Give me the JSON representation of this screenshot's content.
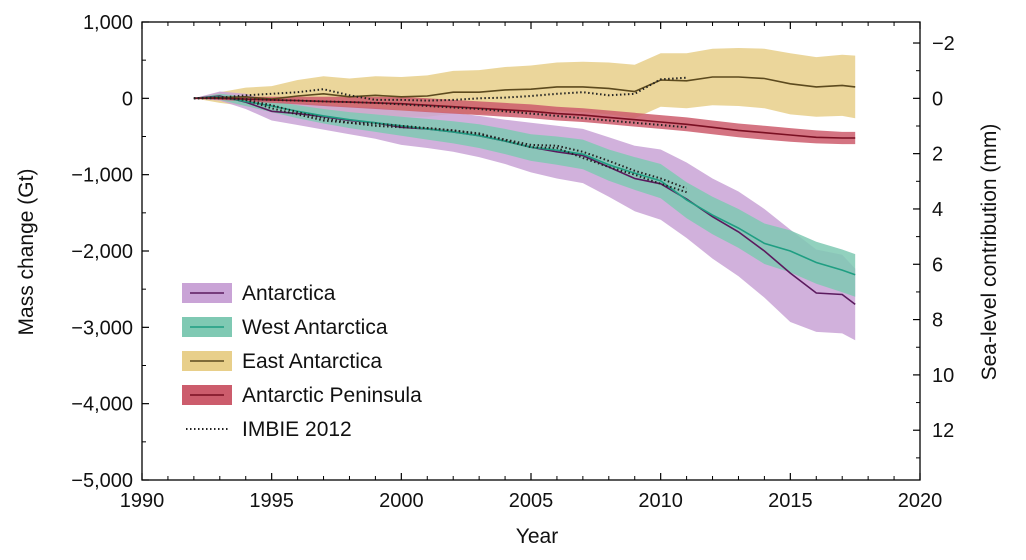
{
  "chart_data": {
    "type": "area",
    "xlabel": "Year",
    "ylabel": "Mass change (Gt)",
    "y2label": "Sea-level contribution (mm)",
    "xlim": [
      1990,
      2020
    ],
    "ylim": [
      -5000,
      1000
    ],
    "y2lim": [
      13.8,
      -2.76
    ],
    "xticks": [
      "1990",
      "1995",
      "2000",
      "2005",
      "2010",
      "2015",
      "2020"
    ],
    "yticks": [
      "1,000",
      "0",
      "−1,000",
      "−2,000",
      "−3,000",
      "−4,000",
      "−5,000"
    ],
    "y2ticks": [
      "−2",
      "0",
      "2",
      "4",
      "6",
      "8",
      "10",
      "12"
    ],
    "grid": false,
    "legend_position": "lower-left",
    "series": [
      {
        "name": "Antarctica",
        "color": "#5b1a5e",
        "band_color": "#c9a3d6",
        "x": [
          1992,
          1993,
          1994,
          1995,
          1996,
          1997,
          1998,
          1999,
          2000,
          2001,
          2002,
          2003,
          2004,
          2005,
          2006,
          2007,
          2008,
          2009,
          2010,
          2011,
          2012,
          2013,
          2014,
          2015,
          2016,
          2017,
          2017.5
        ],
        "y": [
          0,
          30,
          -50,
          -170,
          -200,
          -240,
          -290,
          -320,
          -380,
          -400,
          -440,
          -490,
          -560,
          -640,
          -700,
          -750,
          -900,
          -1050,
          -1120,
          -1320,
          -1550,
          -1750,
          -2000,
          -2290,
          -2550,
          -2570,
          -2700
        ],
        "low": [
          0,
          -30,
          -140,
          -290,
          -350,
          -410,
          -470,
          -530,
          -610,
          -650,
          -700,
          -770,
          -860,
          -970,
          -1050,
          -1110,
          -1290,
          -1480,
          -1590,
          -1830,
          -2100,
          -2330,
          -2610,
          -2930,
          -3060,
          -3080,
          -3170
        ],
        "high": [
          0,
          90,
          60,
          -40,
          -60,
          -80,
          -110,
          -120,
          -160,
          -170,
          -190,
          -230,
          -280,
          -320,
          -360,
          -400,
          -510,
          -620,
          -670,
          -840,
          -1050,
          -1220,
          -1450,
          -1720,
          -1980,
          -2050,
          -2230
        ]
      },
      {
        "name": "West Antarctica",
        "color": "#1f9e82",
        "band_color": "#7fc9b3",
        "x": [
          1992,
          1993,
          1994,
          1995,
          1996,
          1997,
          1998,
          1999,
          2000,
          2001,
          2002,
          2003,
          2004,
          2005,
          2006,
          2007,
          2008,
          2009,
          2010,
          2011,
          2012,
          2013,
          2014,
          2015,
          2016,
          2017,
          2017.5
        ],
        "y": [
          0,
          20,
          -40,
          -100,
          -170,
          -230,
          -280,
          -320,
          -360,
          -400,
          -440,
          -490,
          -560,
          -640,
          -680,
          -730,
          -870,
          -980,
          -1080,
          -1330,
          -1530,
          -1700,
          -1900,
          -2000,
          -2150,
          -2250,
          -2310
        ],
        "low": [
          0,
          -20,
          -100,
          -180,
          -260,
          -330,
          -390,
          -440,
          -490,
          -540,
          -590,
          -650,
          -730,
          -820,
          -870,
          -930,
          -1080,
          -1200,
          -1310,
          -1570,
          -1780,
          -1960,
          -2170,
          -2280,
          -2430,
          -2540,
          -2600
        ],
        "high": [
          0,
          60,
          20,
          -30,
          -90,
          -140,
          -180,
          -210,
          -240,
          -270,
          -300,
          -340,
          -400,
          -470,
          -500,
          -540,
          -670,
          -770,
          -860,
          -1100,
          -1290,
          -1450,
          -1640,
          -1730,
          -1880,
          -1980,
          -2040
        ]
      },
      {
        "name": "East Antarctica",
        "color": "#5c4a1e",
        "band_color": "#e8cf8a",
        "x": [
          1992,
          1993,
          1994,
          1995,
          1996,
          1997,
          1998,
          1999,
          2000,
          2001,
          2002,
          2003,
          2004,
          2005,
          2006,
          2007,
          2008,
          2009,
          2010,
          2011,
          2012,
          2013,
          2014,
          2015,
          2016,
          2017,
          2017.5
        ],
        "y": [
          0,
          10,
          20,
          -10,
          30,
          60,
          20,
          40,
          20,
          30,
          80,
          80,
          110,
          120,
          150,
          150,
          130,
          90,
          240,
          230,
          280,
          280,
          260,
          190,
          150,
          170,
          150
        ],
        "low": [
          0,
          -60,
          -100,
          -180,
          -180,
          -170,
          -220,
          -210,
          -240,
          -240,
          -200,
          -210,
          -190,
          -190,
          -170,
          -180,
          -210,
          -260,
          -110,
          -130,
          -90,
          -100,
          -130,
          -210,
          -240,
          -230,
          -260
        ],
        "high": [
          0,
          80,
          140,
          160,
          240,
          290,
          260,
          290,
          280,
          300,
          360,
          370,
          410,
          430,
          470,
          480,
          470,
          440,
          590,
          590,
          650,
          660,
          650,
          590,
          540,
          570,
          560
        ]
      },
      {
        "name": "Antarctic Peninsula",
        "color": "#7a0f22",
        "band_color": "#cc5c6c",
        "x": [
          1992,
          1993,
          1994,
          1995,
          1996,
          1997,
          1998,
          1999,
          2000,
          2001,
          2002,
          2003,
          2004,
          2005,
          2006,
          2007,
          2008,
          2009,
          2010,
          2011,
          2012,
          2013,
          2014,
          2015,
          2016,
          2017,
          2017.5
        ],
        "y": [
          0,
          0,
          -10,
          -20,
          -30,
          -40,
          -50,
          -60,
          -70,
          -90,
          -110,
          -130,
          -150,
          -170,
          -200,
          -220,
          -250,
          -280,
          -310,
          -340,
          -380,
          -420,
          -450,
          -480,
          -510,
          -520,
          -520
        ],
        "low": [
          0,
          -20,
          -40,
          -60,
          -80,
          -100,
          -120,
          -140,
          -160,
          -180,
          -200,
          -220,
          -240,
          -260,
          -290,
          -310,
          -340,
          -370,
          -400,
          -430,
          -470,
          -510,
          -540,
          -570,
          -590,
          -600,
          -600
        ],
        "high": [
          0,
          20,
          20,
          20,
          20,
          20,
          20,
          20,
          20,
          0,
          -20,
          -40,
          -60,
          -80,
          -110,
          -130,
          -160,
          -190,
          -220,
          -250,
          -290,
          -330,
          -360,
          -390,
          -420,
          -440,
          -440
        ]
      },
      {
        "name": "IMBIE 2012",
        "style": "dotted",
        "color": "#222222",
        "lines": [
          {
            "x": [
              1992,
              1993,
              1994,
              1995,
              1996,
              1997,
              1998,
              1999,
              2000,
              2001,
              2002,
              2003,
              2004,
              2005,
              2006,
              2007,
              2008,
              2009,
              2010,
              2011
            ],
            "y": [
              0,
              10,
              -20,
              -130,
              -210,
              -290,
              -320,
              -330,
              -360,
              -390,
              -420,
              -460,
              -550,
              -640,
              -650,
              -780,
              -900,
              -1000,
              -1120,
              -1230
            ]
          },
          {
            "x": [
              1992,
              1993,
              1994,
              1995,
              1996,
              1997,
              1998,
              1999,
              2000,
              2001,
              2002,
              2003,
              2004,
              2005,
              2006,
              2007,
              2008,
              2009,
              2010,
              2011
            ],
            "y": [
              0,
              10,
              -20,
              -90,
              -180,
              -260,
              -320,
              -360,
              -380,
              -390,
              -420,
              -470,
              -540,
              -610,
              -620,
              -700,
              -820,
              -950,
              -1050,
              -1180
            ]
          },
          {
            "x": [
              1992,
              1993,
              1994,
              1995,
              1996,
              1997,
              1998,
              1999,
              2000,
              2001,
              2002,
              2003,
              2004,
              2005,
              2006,
              2007,
              2008,
              2009,
              2010,
              2011
            ],
            "y": [
              0,
              10,
              40,
              60,
              80,
              120,
              40,
              -20,
              -20,
              -30,
              -20,
              0,
              10,
              30,
              60,
              80,
              40,
              60,
              250,
              270
            ]
          },
          {
            "x": [
              1992,
              1993,
              1994,
              1995,
              1996,
              1997,
              1998,
              1999,
              2000,
              2001,
              2002,
              2003,
              2004,
              2005,
              2006,
              2007,
              2008,
              2009,
              2010,
              2011
            ],
            "y": [
              0,
              0,
              -10,
              -20,
              -30,
              -40,
              -50,
              -60,
              -80,
              -100,
              -120,
              -140,
              -170,
              -200,
              -230,
              -260,
              -290,
              -320,
              -350,
              -380
            ]
          }
        ]
      }
    ]
  },
  "colors": {
    "axis": "#000000",
    "background": "#ffffff"
  }
}
